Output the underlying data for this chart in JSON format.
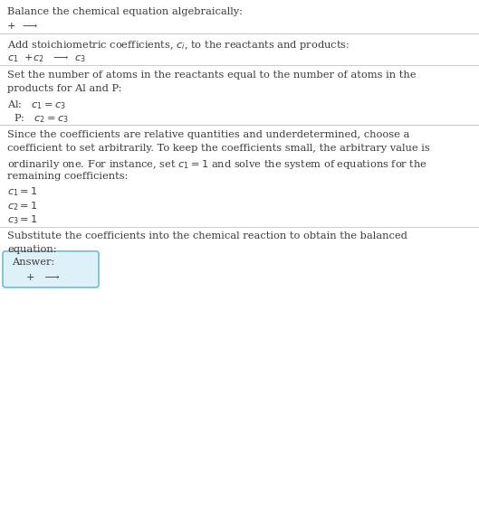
{
  "title": "Balance the chemical equation algebraically:",
  "line1": "+  ⟶",
  "section2_header": "Add stoichiometric coefficients, $c_i$, to the reactants and products:",
  "section2_eq": "$c_1$  +$c_2$   ⟶  $c_3$",
  "section3_header_1": "Set the number of atoms in the reactants equal to the number of atoms in the",
  "section3_header_2": "products for Al and P:",
  "section3_al": "Al:   $c_1 = c_3$",
  "section3_p": "  P:   $c_2 = c_3$",
  "section4_header_1": "Since the coefficients are relative quantities and underdetermined, choose a",
  "section4_header_2": "coefficient to set arbitrarily. To keep the coefficients small, the arbitrary value is",
  "section4_header_3": "ordinarily one. For instance, set $c_1 = 1$ and solve the system of equations for the",
  "section4_header_4": "remaining coefficients:",
  "section4_c1": "$c_1 = 1$",
  "section4_c2": "$c_2 = 1$",
  "section4_c3": "$c_3 = 1$",
  "section5_header_1": "Substitute the coefficients into the chemical reaction to obtain the balanced",
  "section5_header_2": "equation:",
  "answer_label": "Answer:",
  "answer_eq": "   +   ⟶",
  "bg_color": "#ffffff",
  "text_color": "#3a3a3a",
  "line_color": "#cccccc",
  "answer_box_color": "#def0f8",
  "answer_box_border": "#6bbdd4",
  "fig_width": 5.29,
  "fig_height": 5.63,
  "dpi": 100
}
